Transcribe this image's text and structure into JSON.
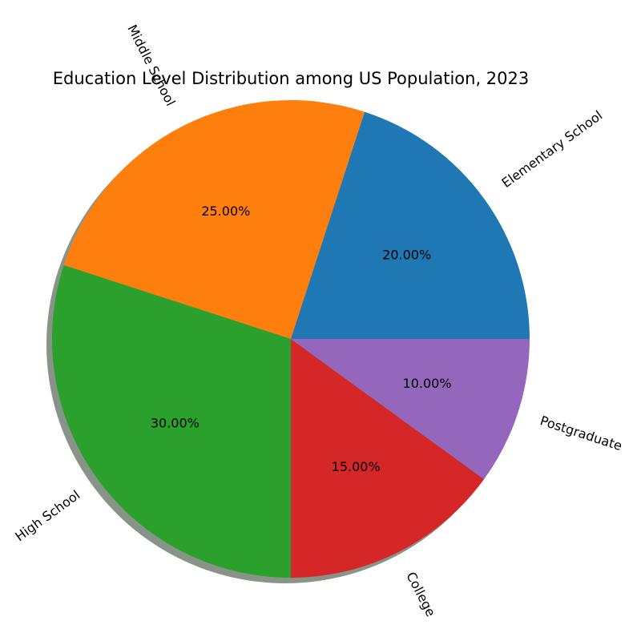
{
  "chart_data": {
    "type": "pie",
    "title": "Education Level Distribution among US Population, 2023",
    "categories": [
      "Elementary School",
      "Middle School",
      "High School",
      "College",
      "Postgraduate"
    ],
    "values": [
      20,
      25,
      30,
      15,
      10
    ],
    "value_labels": [
      "20.00%",
      "25.00%",
      "30.00%",
      "15.00%",
      "10.00%"
    ],
    "colors": [
      "#1f77b4",
      "#ff7f0e",
      "#2ca02c",
      "#d62728",
      "#9467bd"
    ],
    "start_angle": 0,
    "direction": "counterclockwise",
    "shadow": true,
    "legend": "none"
  }
}
